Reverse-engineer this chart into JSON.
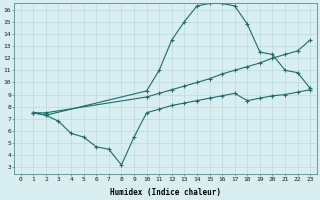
{
  "xlabel": "Humidex (Indice chaleur)",
  "bg_color": "#d8eef0",
  "grid_color": "#c8dfe0",
  "line_color": "#1e6b6b",
  "xlim": [
    -0.5,
    23.5
  ],
  "ylim": [
    2.5,
    16.5
  ],
  "yticks": [
    3,
    4,
    5,
    6,
    7,
    8,
    9,
    10,
    11,
    12,
    13,
    14,
    15,
    16
  ],
  "xticks": [
    0,
    1,
    2,
    3,
    4,
    5,
    6,
    7,
    8,
    9,
    10,
    11,
    12,
    13,
    14,
    15,
    16,
    17,
    18,
    19,
    20,
    21,
    22,
    23
  ],
  "line1_x": [
    1,
    2,
    10,
    11,
    12,
    13,
    14,
    15,
    16,
    17,
    18,
    19,
    20,
    21,
    22,
    23
  ],
  "line1_y": [
    7.5,
    7.3,
    9.3,
    11.0,
    13.5,
    15.0,
    16.3,
    16.5,
    16.5,
    16.3,
    14.8,
    12.5,
    12.3,
    11.0,
    10.8,
    9.5
  ],
  "line2_x": [
    1,
    2,
    10,
    11,
    12,
    13,
    14,
    15,
    16,
    17,
    18,
    19,
    20,
    21,
    22,
    23
  ],
  "line2_y": [
    7.5,
    7.5,
    8.8,
    9.1,
    9.4,
    9.7,
    10.0,
    10.3,
    10.7,
    11.0,
    11.3,
    11.6,
    12.0,
    12.3,
    12.6,
    13.5
  ],
  "line3_x": [
    1,
    2,
    3,
    4,
    5,
    6,
    7,
    8,
    9,
    10,
    11,
    12,
    13,
    14,
    15,
    16,
    17,
    18,
    19,
    20,
    21,
    22,
    23
  ],
  "line3_y": [
    7.5,
    7.3,
    6.8,
    5.8,
    5.5,
    4.7,
    4.5,
    3.2,
    5.5,
    7.5,
    7.8,
    8.1,
    8.3,
    8.5,
    8.7,
    8.9,
    9.1,
    8.5,
    8.7,
    8.9,
    9.0,
    9.2,
    9.4
  ]
}
